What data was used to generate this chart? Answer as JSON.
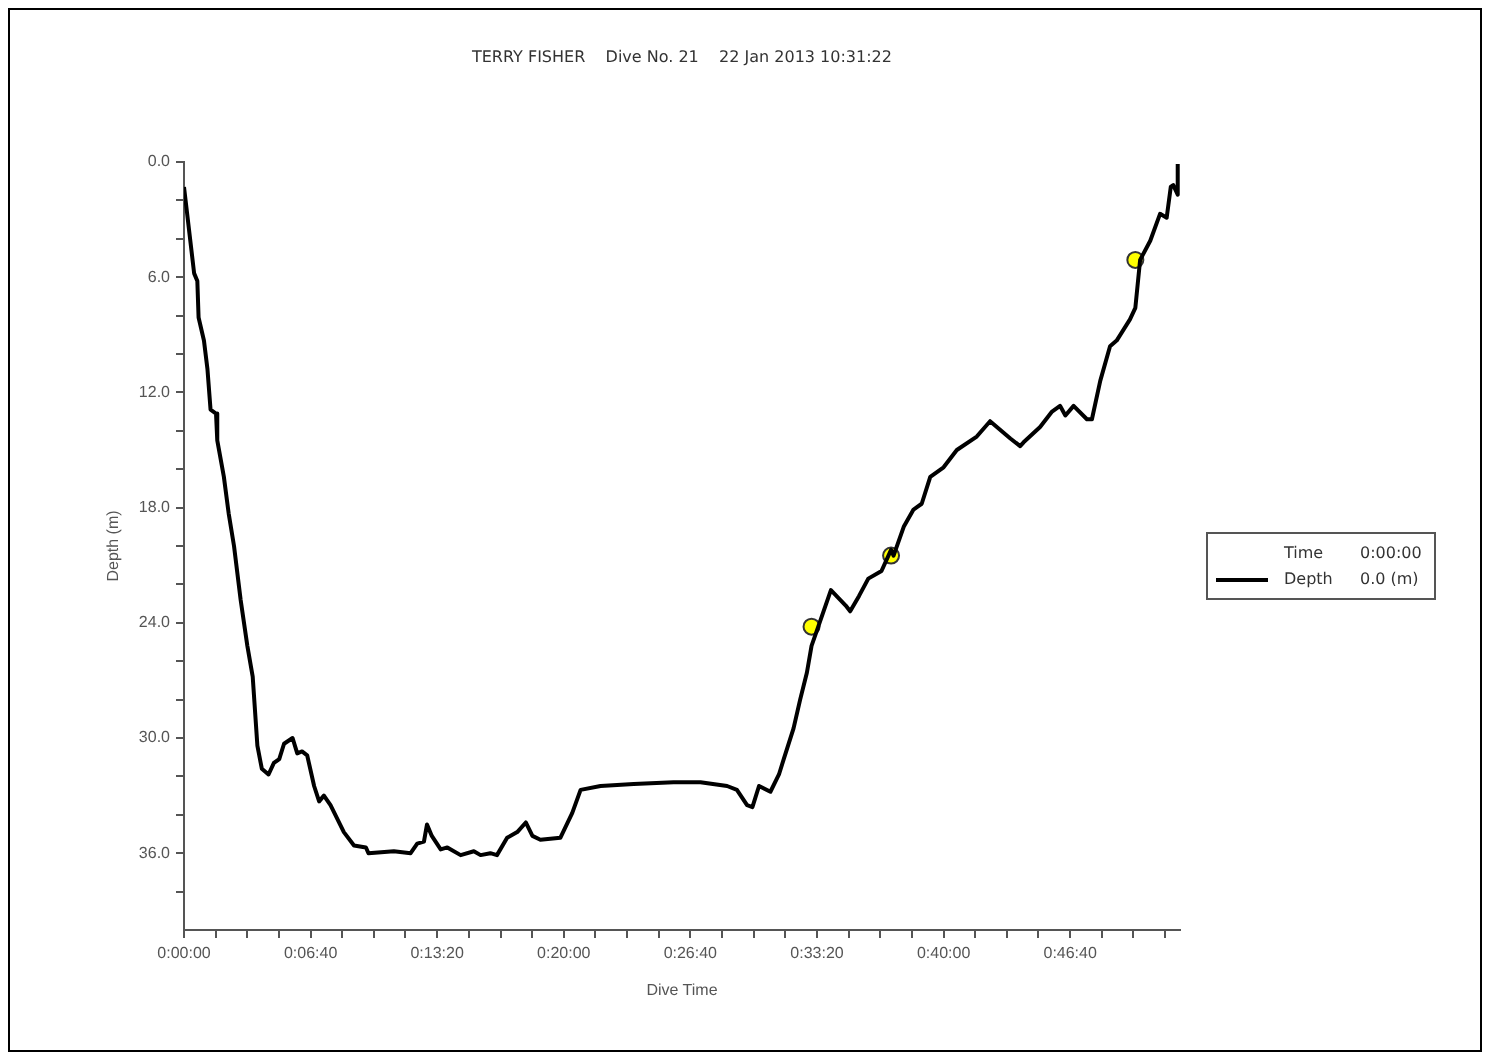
{
  "chart_data": {
    "type": "line",
    "title": "TERRY FISHER    Dive No. 21    22 Jan 2013 10:31:22",
    "xlabel": "Dive Time",
    "ylabel": "Depth (m)",
    "xlim": [
      0,
      0.8742
    ],
    "xticks": [
      {
        "value": 0,
        "label": "0:00:00"
      },
      {
        "value": 0.02778,
        "label": null
      },
      {
        "value": 0.05556,
        "label": null
      },
      {
        "value": 0.08333,
        "label": null
      },
      {
        "value": 0.1111,
        "label": "0:06:40"
      },
      {
        "value": 0.1389,
        "label": null
      },
      {
        "value": 0.1667,
        "label": null
      },
      {
        "value": 0.1944,
        "label": null
      },
      {
        "value": 0.2222,
        "label": "0:13:20"
      },
      {
        "value": 0.25,
        "label": null
      },
      {
        "value": 0.2778,
        "label": null
      },
      {
        "value": 0.3056,
        "label": null
      },
      {
        "value": 0.3333,
        "label": "0:20:00"
      },
      {
        "value": 0.3611,
        "label": null
      },
      {
        "value": 0.3889,
        "label": null
      },
      {
        "value": 0.4167,
        "label": null
      },
      {
        "value": 0.4444,
        "label": "0:26:40"
      },
      {
        "value": 0.4722,
        "label": null
      },
      {
        "value": 0.5,
        "label": null
      },
      {
        "value": 0.5278,
        "label": null
      },
      {
        "value": 0.5556,
        "label": "0:33:20"
      },
      {
        "value": 0.5833,
        "label": null
      },
      {
        "value": 0.6111,
        "label": null
      },
      {
        "value": 0.6389,
        "label": null
      },
      {
        "value": 0.6667,
        "label": "0:40:00"
      },
      {
        "value": 0.6944,
        "label": null
      },
      {
        "value": 0.7222,
        "label": null
      },
      {
        "value": 0.75,
        "label": null
      },
      {
        "value": 0.7778,
        "label": "0:46:40"
      },
      {
        "value": 0.8056,
        "label": null
      },
      {
        "value": 0.8333,
        "label": null
      },
      {
        "value": 0.8611,
        "label": null
      }
    ],
    "ylim": [
      40,
      0
    ],
    "yticks": [
      {
        "value": 0,
        "label": "0.0"
      },
      {
        "value": 2,
        "label": null
      },
      {
        "value": 4,
        "label": null
      },
      {
        "value": 6,
        "label": "6.0"
      },
      {
        "value": 8,
        "label": null
      },
      {
        "value": 10,
        "label": null
      },
      {
        "value": 12,
        "label": "12.0"
      },
      {
        "value": 14,
        "label": null
      },
      {
        "value": 16,
        "label": null
      },
      {
        "value": 18,
        "label": "18.0"
      },
      {
        "value": 20,
        "label": null
      },
      {
        "value": 22,
        "label": null
      },
      {
        "value": 24,
        "label": "24.0"
      },
      {
        "value": 26,
        "label": null
      },
      {
        "value": 28,
        "label": null
      },
      {
        "value": 30,
        "label": "30.0"
      },
      {
        "value": 32,
        "label": null
      },
      {
        "value": 34,
        "label": null
      },
      {
        "value": 36,
        "label": "36.0"
      },
      {
        "value": 38,
        "label": null
      }
    ],
    "grid": false,
    "legend": "right",
    "annotations": [
      "Time",
      "0:00:00",
      "0.0 (m)"
    ],
    "series": [
      {
        "name": "Depth",
        "color": "#000000",
        "x": [
          0,
          0.0089,
          0.0117,
          0.0128,
          0.0175,
          0.0206,
          0.0233,
          0.0281,
          0.0292,
          0.035,
          0.0392,
          0.0439,
          0.0497,
          0.0556,
          0.0603,
          0.0644,
          0.0683,
          0.0742,
          0.0789,
          0.0836,
          0.0878,
          0.0953,
          0.0994,
          0.1036,
          0.1081,
          0.1142,
          0.1186,
          0.1228,
          0.1286,
          0.1403,
          0.1492,
          0.1597,
          0.1619,
          0.1842,
          0.1989,
          0.2047,
          0.2106,
          0.2133,
          0.2175,
          0.2253,
          0.2311,
          0.2428,
          0.2544,
          0.2603,
          0.2689,
          0.2747,
          0.2836,
          0.2925,
          0.3,
          0.3058,
          0.3128,
          0.3303,
          0.3408,
          0.3481,
          0.3656,
          0.3947,
          0.4297,
          0.4533,
          0.4767,
          0.4853,
          0.4942,
          0.4989,
          0.5047,
          0.5147,
          0.5222,
          0.5264,
          0.535,
          0.5408,
          0.5467,
          0.5508,
          0.5567,
          0.5678,
          0.5808,
          0.5847,
          0.5925,
          0.6006,
          0.6122,
          0.6206,
          0.6228,
          0.6317,
          0.6403,
          0.6475,
          0.655,
          0.6667,
          0.6783,
          0.6958,
          0.7075,
          0.7253,
          0.7339,
          0.7369,
          0.7514,
          0.7619,
          0.7689,
          0.7736,
          0.7808,
          0.7925,
          0.7969,
          0.8042,
          0.8128,
          0.8186,
          0.8303,
          0.835,
          0.8392,
          0.8481,
          0.8567,
          0.8625,
          0.8661,
          0.8683,
          0.8722,
          0.8722
        ],
        "values": [
          1.3,
          5.8,
          6.2,
          8.1,
          9.3,
          10.8,
          12.9,
          13.1,
          14.5,
          16.4,
          18.3,
          20.0,
          22.8,
          25.2,
          26.8,
          30.4,
          31.6,
          31.9,
          31.3,
          31.1,
          30.3,
          30.0,
          30.8,
          30.7,
          30.9,
          32.5,
          33.3,
          33.0,
          33.5,
          34.9,
          35.6,
          35.7,
          36.0,
          35.9,
          36.0,
          35.5,
          35.4,
          34.5,
          35.1,
          35.8,
          35.7,
          36.1,
          35.9,
          36.1,
          36.0,
          36.1,
          35.2,
          34.9,
          34.4,
          35.1,
          35.3,
          35.2,
          33.9,
          32.7,
          32.5,
          32.4,
          32.3,
          32.3,
          32.5,
          32.7,
          33.5,
          33.6,
          32.5,
          32.8,
          31.9,
          31.1,
          29.5,
          28.0,
          26.6,
          25.2,
          24.2,
          22.3,
          23.1,
          23.4,
          22.6,
          21.7,
          21.3,
          20.2,
          20.5,
          19.0,
          18.1,
          17.8,
          16.4,
          15.9,
          15.0,
          14.3,
          13.5,
          14.4,
          14.8,
          14.6,
          13.8,
          13.0,
          12.7,
          13.2,
          12.7,
          13.4,
          13.4,
          11.4,
          9.6,
          9.3,
          8.2,
          7.6,
          5.1,
          4.1,
          2.7,
          2.9,
          1.3,
          1.2,
          1.7,
          0.1
        ]
      },
      {
        "type": "scatter",
        "marker": "circle",
        "color": "#ffff00",
        "x": [
          0.5508,
          0.6206,
          0.835
        ],
        "values": [
          24.2,
          20.5,
          5.1
        ]
      }
    ]
  }
}
